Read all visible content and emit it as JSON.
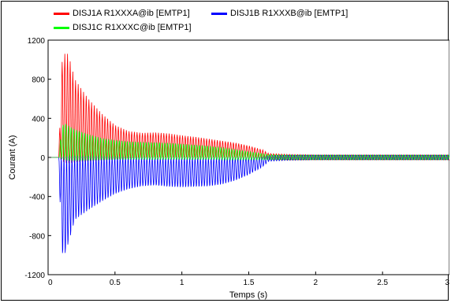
{
  "chart_data": {
    "type": "line",
    "title": "",
    "xlabel": "Temps (s)",
    "ylabel": "Courant (A)",
    "xlim": [
      0,
      3
    ],
    "ylim": [
      -1200,
      1200
    ],
    "grid": false,
    "legend_position": "top-left",
    "x_ticks": [
      "0",
      "0.5",
      "1",
      "1.5",
      "2",
      "2.5",
      "3"
    ],
    "x_tick_values": [
      0,
      0.5,
      1,
      1.5,
      2,
      2.5,
      3
    ],
    "y_ticks": [
      "1200",
      "800",
      "400",
      "0",
      "-400",
      "-800",
      "-1200"
    ],
    "y_tick_values": [
      1200,
      800,
      400,
      0,
      -400,
      -800,
      -1200
    ],
    "oscillation_frequency_hz": 50,
    "series": [
      {
        "name": "DISJ1A R1XXXA@ib [EMTP1]",
        "color": "#ff0000",
        "envelope_time": [
          0,
          0.08,
          0.1,
          0.12,
          0.15,
          0.2,
          0.3,
          0.4,
          0.5,
          0.6,
          0.7,
          0.8,
          0.9,
          1.0,
          1.1,
          1.2,
          1.3,
          1.4,
          1.5,
          1.6,
          1.65,
          1.8,
          2.0,
          2.5,
          3.0
        ],
        "envelope_upper": [
          0,
          0,
          950,
          1060,
          1060,
          800,
          600,
          450,
          330,
          270,
          250,
          255,
          245,
          225,
          210,
          190,
          170,
          150,
          120,
          80,
          40,
          30,
          25,
          25,
          25
        ],
        "envelope_lower": [
          0,
          0,
          -30,
          -50,
          -60,
          -50,
          -40,
          -30,
          -20,
          -10,
          0,
          0,
          0,
          0,
          0,
          0,
          0,
          0,
          0,
          -10,
          -20,
          -25,
          -25,
          -25,
          -25
        ]
      },
      {
        "name": "DISJ1B R1XXXB@ib [EMTP1]",
        "color": "#0000ff",
        "envelope_time": [
          0,
          0.08,
          0.1,
          0.12,
          0.15,
          0.2,
          0.3,
          0.4,
          0.5,
          0.6,
          0.7,
          0.8,
          0.9,
          1.0,
          1.1,
          1.2,
          1.3,
          1.4,
          1.5,
          1.6,
          1.65,
          1.8,
          2.0,
          2.5,
          3.0
        ],
        "envelope_upper": [
          0,
          0,
          20,
          30,
          30,
          30,
          25,
          20,
          15,
          10,
          5,
          0,
          0,
          0,
          0,
          0,
          0,
          0,
          0,
          10,
          20,
          25,
          25,
          25,
          25
        ],
        "envelope_lower": [
          0,
          0,
          -980,
          -1030,
          -900,
          -650,
          -550,
          -460,
          -380,
          -330,
          -300,
          -290,
          -305,
          -310,
          -305,
          -300,
          -280,
          -240,
          -180,
          -100,
          -40,
          -30,
          -25,
          -25,
          -25
        ]
      },
      {
        "name": "DISJ1C R1XXXC@ib [EMTP1]",
        "color": "#00ff00",
        "envelope_time": [
          0,
          0.08,
          0.1,
          0.12,
          0.15,
          0.2,
          0.3,
          0.4,
          0.5,
          0.6,
          0.7,
          0.8,
          0.9,
          1.0,
          1.1,
          1.2,
          1.3,
          1.4,
          1.5,
          1.6,
          1.65,
          1.8,
          2.0,
          2.5,
          3.0
        ],
        "envelope_upper": [
          0,
          0,
          300,
          360,
          330,
          290,
          240,
          200,
          180,
          165,
          160,
          155,
          150,
          140,
          130,
          120,
          100,
          80,
          60,
          40,
          30,
          25,
          25,
          25,
          25
        ],
        "envelope_lower": [
          0,
          0,
          -20,
          -30,
          -40,
          -40,
          -35,
          -30,
          -25,
          -25,
          -25,
          -25,
          -25,
          -25,
          -25,
          -25,
          -25,
          -25,
          -25,
          -25,
          -25,
          -25,
          -25,
          -25,
          -25
        ]
      }
    ]
  }
}
